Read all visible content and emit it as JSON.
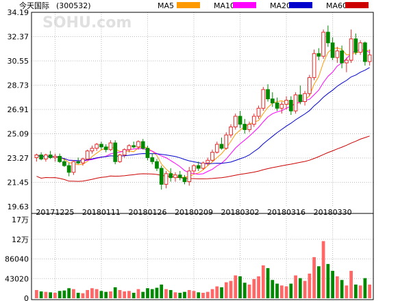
{
  "chart_data": {
    "type": "candlestick",
    "title": "今天国际",
    "code": "(300532)",
    "watermark": "SOHU.com",
    "price_axis": {
      "ticks": [
        "34.19",
        "32.37",
        "30.55",
        "28.73",
        "26.91",
        "25.09",
        "23.27",
        "21.45",
        "19.63"
      ],
      "min": 19.63,
      "max": 34.19
    },
    "volume_axis": {
      "ticks": [
        "17万",
        "12万",
        "86040",
        "43020",
        "0"
      ],
      "tick_values": [
        172080,
        129060,
        86040,
        43020,
        0
      ],
      "max": 172080
    },
    "date_labels": [
      {
        "label": "20171225",
        "index": 4
      },
      {
        "label": "20180111",
        "index": 14
      },
      {
        "label": "20180126",
        "index": 24
      },
      {
        "label": "20180209",
        "index": 34
      },
      {
        "label": "20180302",
        "index": 44
      },
      {
        "label": "20180316",
        "index": 54
      },
      {
        "label": "20180330",
        "index": 64
      }
    ],
    "legend": [
      {
        "name": "MA5",
        "color": "#ff9900"
      },
      {
        "name": "MA10",
        "color": "#ff00ff"
      },
      {
        "name": "MA20",
        "color": "#0000cc"
      },
      {
        "name": "MA60",
        "color": "#cc0000"
      }
    ],
    "colors": {
      "up": "#e62828",
      "down": "#008800",
      "up_volume": "#ff6666"
    },
    "candles": [
      [
        23.3,
        23.6,
        23.0,
        23.5,
        18000
      ],
      [
        23.5,
        23.7,
        23.1,
        23.2,
        15000
      ],
      [
        23.2,
        23.6,
        23.0,
        23.5,
        14000
      ],
      [
        23.5,
        23.8,
        23.2,
        23.3,
        13000
      ],
      [
        23.3,
        23.6,
        23.0,
        23.4,
        12000
      ],
      [
        23.4,
        23.6,
        22.9,
        23.0,
        16000
      ],
      [
        23.0,
        23.2,
        22.6,
        22.7,
        17000
      ],
      [
        22.7,
        22.9,
        21.9,
        22.2,
        22000
      ],
      [
        22.2,
        23.1,
        22.0,
        23.0,
        20000
      ],
      [
        23.0,
        23.3,
        22.8,
        22.9,
        12000
      ],
      [
        22.9,
        23.3,
        22.7,
        23.2,
        11000
      ],
      [
        23.2,
        23.9,
        23.1,
        23.8,
        18000
      ],
      [
        23.8,
        24.2,
        23.6,
        24.0,
        22000
      ],
      [
        24.0,
        24.4,
        23.8,
        24.3,
        20000
      ],
      [
        24.3,
        24.5,
        23.9,
        24.1,
        16000
      ],
      [
        24.1,
        24.3,
        23.7,
        23.9,
        14000
      ],
      [
        23.9,
        24.6,
        23.8,
        24.4,
        15000
      ],
      [
        24.4,
        24.6,
        22.8,
        23.0,
        24000
      ],
      [
        23.0,
        23.6,
        22.9,
        23.5,
        18000
      ],
      [
        23.5,
        24.0,
        23.3,
        23.9,
        15000
      ],
      [
        23.9,
        24.3,
        23.7,
        24.2,
        16000
      ],
      [
        24.2,
        24.5,
        24.0,
        24.1,
        12000
      ],
      [
        24.1,
        24.6,
        23.9,
        24.5,
        20000
      ],
      [
        24.5,
        24.7,
        23.9,
        24.0,
        14000
      ],
      [
        24.0,
        24.2,
        23.1,
        23.3,
        22000
      ],
      [
        23.3,
        23.6,
        22.8,
        23.0,
        20000
      ],
      [
        23.0,
        23.2,
        22.3,
        22.5,
        23000
      ],
      [
        22.5,
        22.7,
        20.9,
        21.3,
        30000
      ],
      [
        21.3,
        22.3,
        21.0,
        22.1,
        20000
      ],
      [
        22.1,
        22.5,
        21.5,
        21.8,
        18000
      ],
      [
        21.8,
        22.2,
        21.5,
        22.0,
        13000
      ],
      [
        22.0,
        22.3,
        21.6,
        21.8,
        12000
      ],
      [
        21.8,
        22.0,
        21.3,
        21.5,
        14000
      ],
      [
        21.5,
        22.6,
        21.2,
        22.3,
        18000
      ],
      [
        22.3,
        22.8,
        22.1,
        22.7,
        16000
      ],
      [
        22.7,
        23.0,
        22.3,
        22.5,
        13000
      ],
      [
        22.5,
        23.0,
        22.4,
        22.9,
        12000
      ],
      [
        22.9,
        23.3,
        22.7,
        23.1,
        14000
      ],
      [
        23.1,
        23.9,
        23.0,
        23.7,
        20000
      ],
      [
        23.7,
        24.5,
        23.6,
        24.3,
        26000
      ],
      [
        24.3,
        24.8,
        23.9,
        24.0,
        24000
      ],
      [
        24.0,
        25.2,
        23.9,
        25.0,
        35000
      ],
      [
        25.0,
        25.8,
        24.8,
        25.6,
        38000
      ],
      [
        25.6,
        26.6,
        25.4,
        26.4,
        50000
      ],
      [
        26.4,
        26.8,
        25.5,
        25.8,
        48000
      ],
      [
        25.8,
        26.2,
        25.1,
        25.4,
        34000
      ],
      [
        25.4,
        26.0,
        25.2,
        25.8,
        30000
      ],
      [
        25.8,
        26.6,
        25.6,
        26.4,
        42000
      ],
      [
        26.4,
        27.2,
        26.2,
        27.0,
        48000
      ],
      [
        27.0,
        28.6,
        26.8,
        28.4,
        72000
      ],
      [
        28.4,
        28.8,
        27.5,
        27.7,
        66000
      ],
      [
        27.7,
        28.2,
        27.1,
        27.4,
        40000
      ],
      [
        27.4,
        27.8,
        26.8,
        27.0,
        32000
      ],
      [
        27.0,
        27.5,
        26.6,
        27.3,
        28000
      ],
      [
        27.3,
        27.9,
        26.9,
        27.6,
        26000
      ],
      [
        27.6,
        27.9,
        26.5,
        26.8,
        32000
      ],
      [
        26.8,
        28.2,
        26.6,
        28.0,
        50000
      ],
      [
        28.0,
        28.7,
        27.3,
        27.5,
        44000
      ],
      [
        27.5,
        28.3,
        27.2,
        28.1,
        38000
      ],
      [
        28.1,
        29.5,
        27.9,
        29.3,
        54000
      ],
      [
        29.3,
        31.4,
        29.1,
        31.1,
        90000
      ],
      [
        31.1,
        31.5,
        30.6,
        30.9,
        70000
      ],
      [
        30.9,
        32.9,
        30.7,
        32.7,
        125000
      ],
      [
        32.7,
        33.2,
        31.6,
        31.9,
        75000
      ],
      [
        31.9,
        32.3,
        30.6,
        30.8,
        60000
      ],
      [
        30.8,
        31.6,
        30.4,
        31.3,
        48000
      ],
      [
        31.3,
        31.7,
        30.0,
        30.4,
        40000
      ],
      [
        30.4,
        30.8,
        29.7,
        30.6,
        28000
      ],
      [
        30.6,
        32.9,
        30.4,
        32.2,
        60000
      ],
      [
        32.2,
        32.6,
        31.0,
        31.2,
        30000
      ],
      [
        31.2,
        32.1,
        31.0,
        31.9,
        28000
      ],
      [
        31.9,
        32.0,
        30.2,
        30.5,
        44000
      ],
      [
        30.5,
        31.4,
        30.2,
        31.0,
        30000
      ]
    ]
  }
}
